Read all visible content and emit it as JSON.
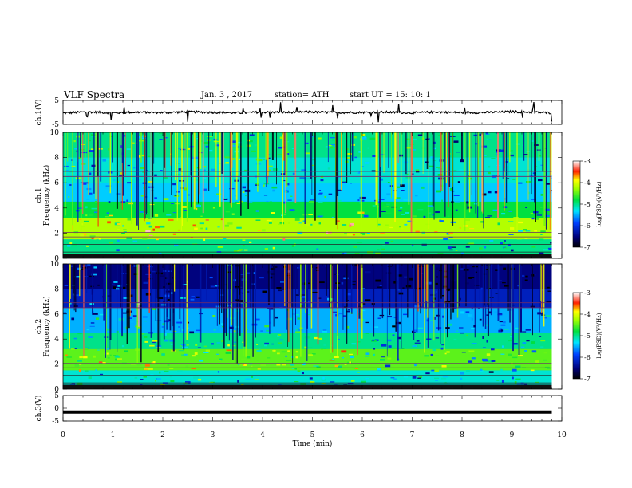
{
  "header": {
    "title": "VLF  Spectra",
    "date": "Jan.  3   , 2017",
    "station": "station= ATH",
    "start_ut": "start  UT  =    15: 10: 1"
  },
  "chart_data": [
    {
      "type": "line",
      "panel": "ch1-waveform",
      "ylabel": "ch.1(V)",
      "xlim": [
        0,
        10
      ],
      "ylim": [
        -5,
        5
      ],
      "yticks": [
        "5",
        "-5"
      ],
      "note": "noisy waveform centered slightly above 0 V with sporadic spikes",
      "x": [
        0,
        0.5,
        1,
        1.5,
        2,
        2.5,
        3,
        3.5,
        4,
        4.5,
        5,
        5.5,
        6,
        6.5,
        7,
        7.5,
        8,
        8.5,
        9,
        9.5,
        9.8
      ],
      "y": [
        -0.3,
        0.2,
        -0.2,
        0.1,
        -0.1,
        0.2,
        0.0,
        -0.2,
        0.1,
        0.0,
        0.2,
        -0.1,
        0.0,
        0.1,
        -0.2,
        0.2,
        -0.1,
        0.0,
        0.3,
        0.0,
        -0.2
      ]
    },
    {
      "type": "heatmap",
      "panel": "ch1-spectrogram",
      "ylabel": "ch.1",
      "ylabel2": "Frequency  (kHz)",
      "xlim": [
        0,
        10
      ],
      "ylim": [
        0,
        10
      ],
      "yticks": [
        "0",
        "2",
        "4",
        "6",
        "8",
        "10"
      ],
      "colorbar": {
        "label": "log(PSD)(V²/Hz)",
        "range": [
          -7,
          -3
        ],
        "ticks": [
          "-3",
          "-4",
          "-5",
          "-6",
          "-7"
        ]
      },
      "bands": [
        {
          "fmin": 8.0,
          "fmax": 10.0,
          "value": -5.0
        },
        {
          "fmin": 6.0,
          "fmax": 8.0,
          "value": -5.2
        },
        {
          "fmin": 4.5,
          "fmax": 6.0,
          "value": -5.4
        },
        {
          "fmin": 3.2,
          "fmax": 4.5,
          "value": -4.8
        },
        {
          "fmin": 1.5,
          "fmax": 3.2,
          "value": -4.2
        },
        {
          "fmin": 0.3,
          "fmax": 1.5,
          "value": -5.0
        }
      ]
    },
    {
      "type": "heatmap",
      "panel": "ch2-spectrogram",
      "ylabel": "ch.2",
      "ylabel2": "Frequency  (kHz)",
      "xlim": [
        0,
        10
      ],
      "ylim": [
        0,
        10
      ],
      "yticks": [
        "0",
        "2",
        "4",
        "6",
        "8",
        "10"
      ],
      "colorbar": {
        "label": "log(PSD)(V²/Hz)",
        "range": [
          -7,
          -3
        ],
        "ticks": [
          "-3",
          "-4",
          "-5",
          "-6",
          "-7"
        ]
      },
      "bands": [
        {
          "fmin": 8.0,
          "fmax": 10.0,
          "value": -6.5
        },
        {
          "fmin": 6.5,
          "fmax": 8.0,
          "value": -6.2
        },
        {
          "fmin": 4.5,
          "fmax": 6.5,
          "value": -5.5
        },
        {
          "fmin": 3.2,
          "fmax": 4.5,
          "value": -5.0
        },
        {
          "fmin": 1.5,
          "fmax": 3.2,
          "value": -4.5
        },
        {
          "fmin": 0.3,
          "fmax": 1.5,
          "value": -5.2
        }
      ]
    },
    {
      "type": "line",
      "panel": "ch3-waveform",
      "ylabel": "ch.3(V)",
      "xlim": [
        0,
        10
      ],
      "ylim": [
        -5,
        5
      ],
      "yticks": [
        "5",
        "0",
        "-5"
      ],
      "xlabel": "Time  (min)",
      "xticks": [
        "0",
        "1",
        "2",
        "3",
        "4",
        "5",
        "6",
        "7",
        "8",
        "9",
        "10"
      ],
      "note": "flat thick trace slightly below 0 V",
      "x": [
        0,
        9.8
      ],
      "y": [
        -1.5,
        -1.5
      ]
    }
  ]
}
